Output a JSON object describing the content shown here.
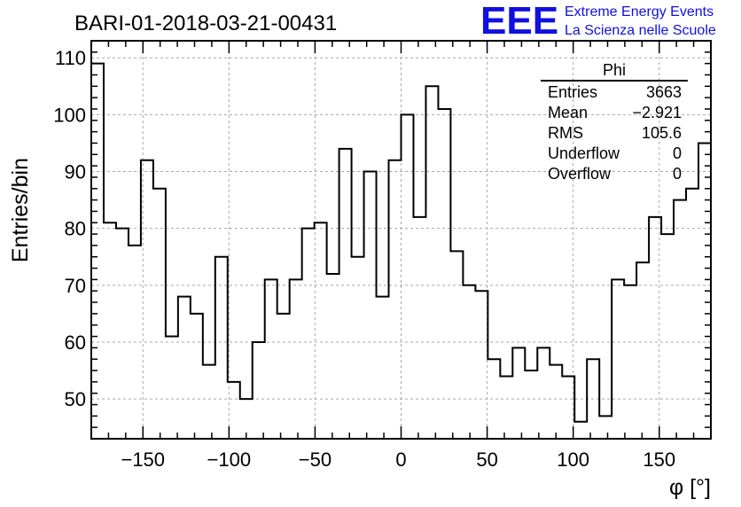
{
  "chart_data": {
    "type": "histogram",
    "title": "BARI-01-2018-03-21-00431",
    "xlabel": "φ [°]",
    "ylabel": "Entries/bin",
    "xlim": [
      -180,
      180
    ],
    "ylim": [
      43,
      113
    ],
    "bin_edges_start": -180,
    "bin_width": 7.2,
    "values": [
      109,
      81,
      80,
      77,
      92,
      87,
      61,
      68,
      65,
      56,
      75,
      53,
      50,
      60,
      71,
      65,
      71,
      80,
      81,
      72,
      94,
      75,
      90,
      68,
      92,
      100,
      82,
      105,
      101,
      76,
      70,
      69,
      57,
      54,
      59,
      55,
      59,
      56,
      54,
      46,
      57,
      47,
      71,
      70,
      74,
      82,
      79,
      85,
      87,
      95
    ],
    "x_ticks": [
      -150,
      -100,
      -50,
      0,
      50,
      100,
      150
    ],
    "x_tick_labels": [
      "−150",
      "−100",
      "−50",
      "0",
      "50",
      "100",
      "150"
    ],
    "y_ticks": [
      50,
      60,
      70,
      80,
      90,
      100,
      110
    ],
    "y_tick_labels": [
      "50",
      "60",
      "70",
      "80",
      "90",
      "100",
      "110"
    ],
    "grid": true,
    "color": "#000000"
  },
  "stats": {
    "name": "Phi",
    "rows": [
      {
        "label": "Entries",
        "value": "3663"
      },
      {
        "label": "Mean",
        "value": "−2.921"
      },
      {
        "label": "RMS",
        "value": "105.6"
      },
      {
        "label": "Underflow",
        "value": "0"
      },
      {
        "label": "Overflow",
        "value": "0"
      }
    ]
  },
  "logo": {
    "mark": "EEE",
    "line1": "Extreme Energy Events",
    "line2": "La Scienza nelle Scuole",
    "color": "#1010e0"
  }
}
